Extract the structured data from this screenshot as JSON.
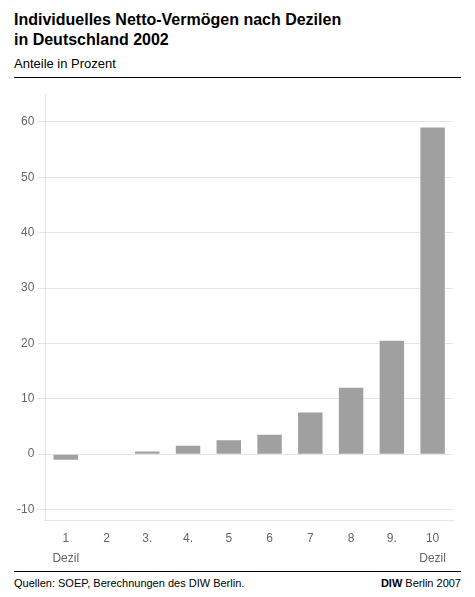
{
  "chart_data": {
    "type": "bar",
    "title": [
      "Individuelles Netto-Vermögen nach Dezilen",
      "in Deutschland 2002"
    ],
    "subtitle": "Anteile in Prozent",
    "categories": [
      "1",
      "2",
      "3.",
      "4.",
      "5",
      "6",
      "7",
      "8",
      "9.",
      "10"
    ],
    "values": [
      -1.0,
      0.0,
      0.5,
      1.5,
      2.5,
      3.5,
      7.5,
      12.0,
      20.5,
      59.0
    ],
    "color": "#a0a0a0",
    "ylim": [
      -12,
      65
    ],
    "yticks": [
      -10,
      0,
      10,
      20,
      30,
      40,
      50,
      60
    ],
    "grid": true,
    "annotations": [
      {
        "text": "Dezil",
        "category": "1"
      },
      {
        "text": "Dezil",
        "category": "10"
      }
    ],
    "source": "Quellen: SOEP, Berechnungen des DIW Berlin.",
    "credit": {
      "bold": "DIW",
      "normal": " Berlin 2007"
    }
  }
}
